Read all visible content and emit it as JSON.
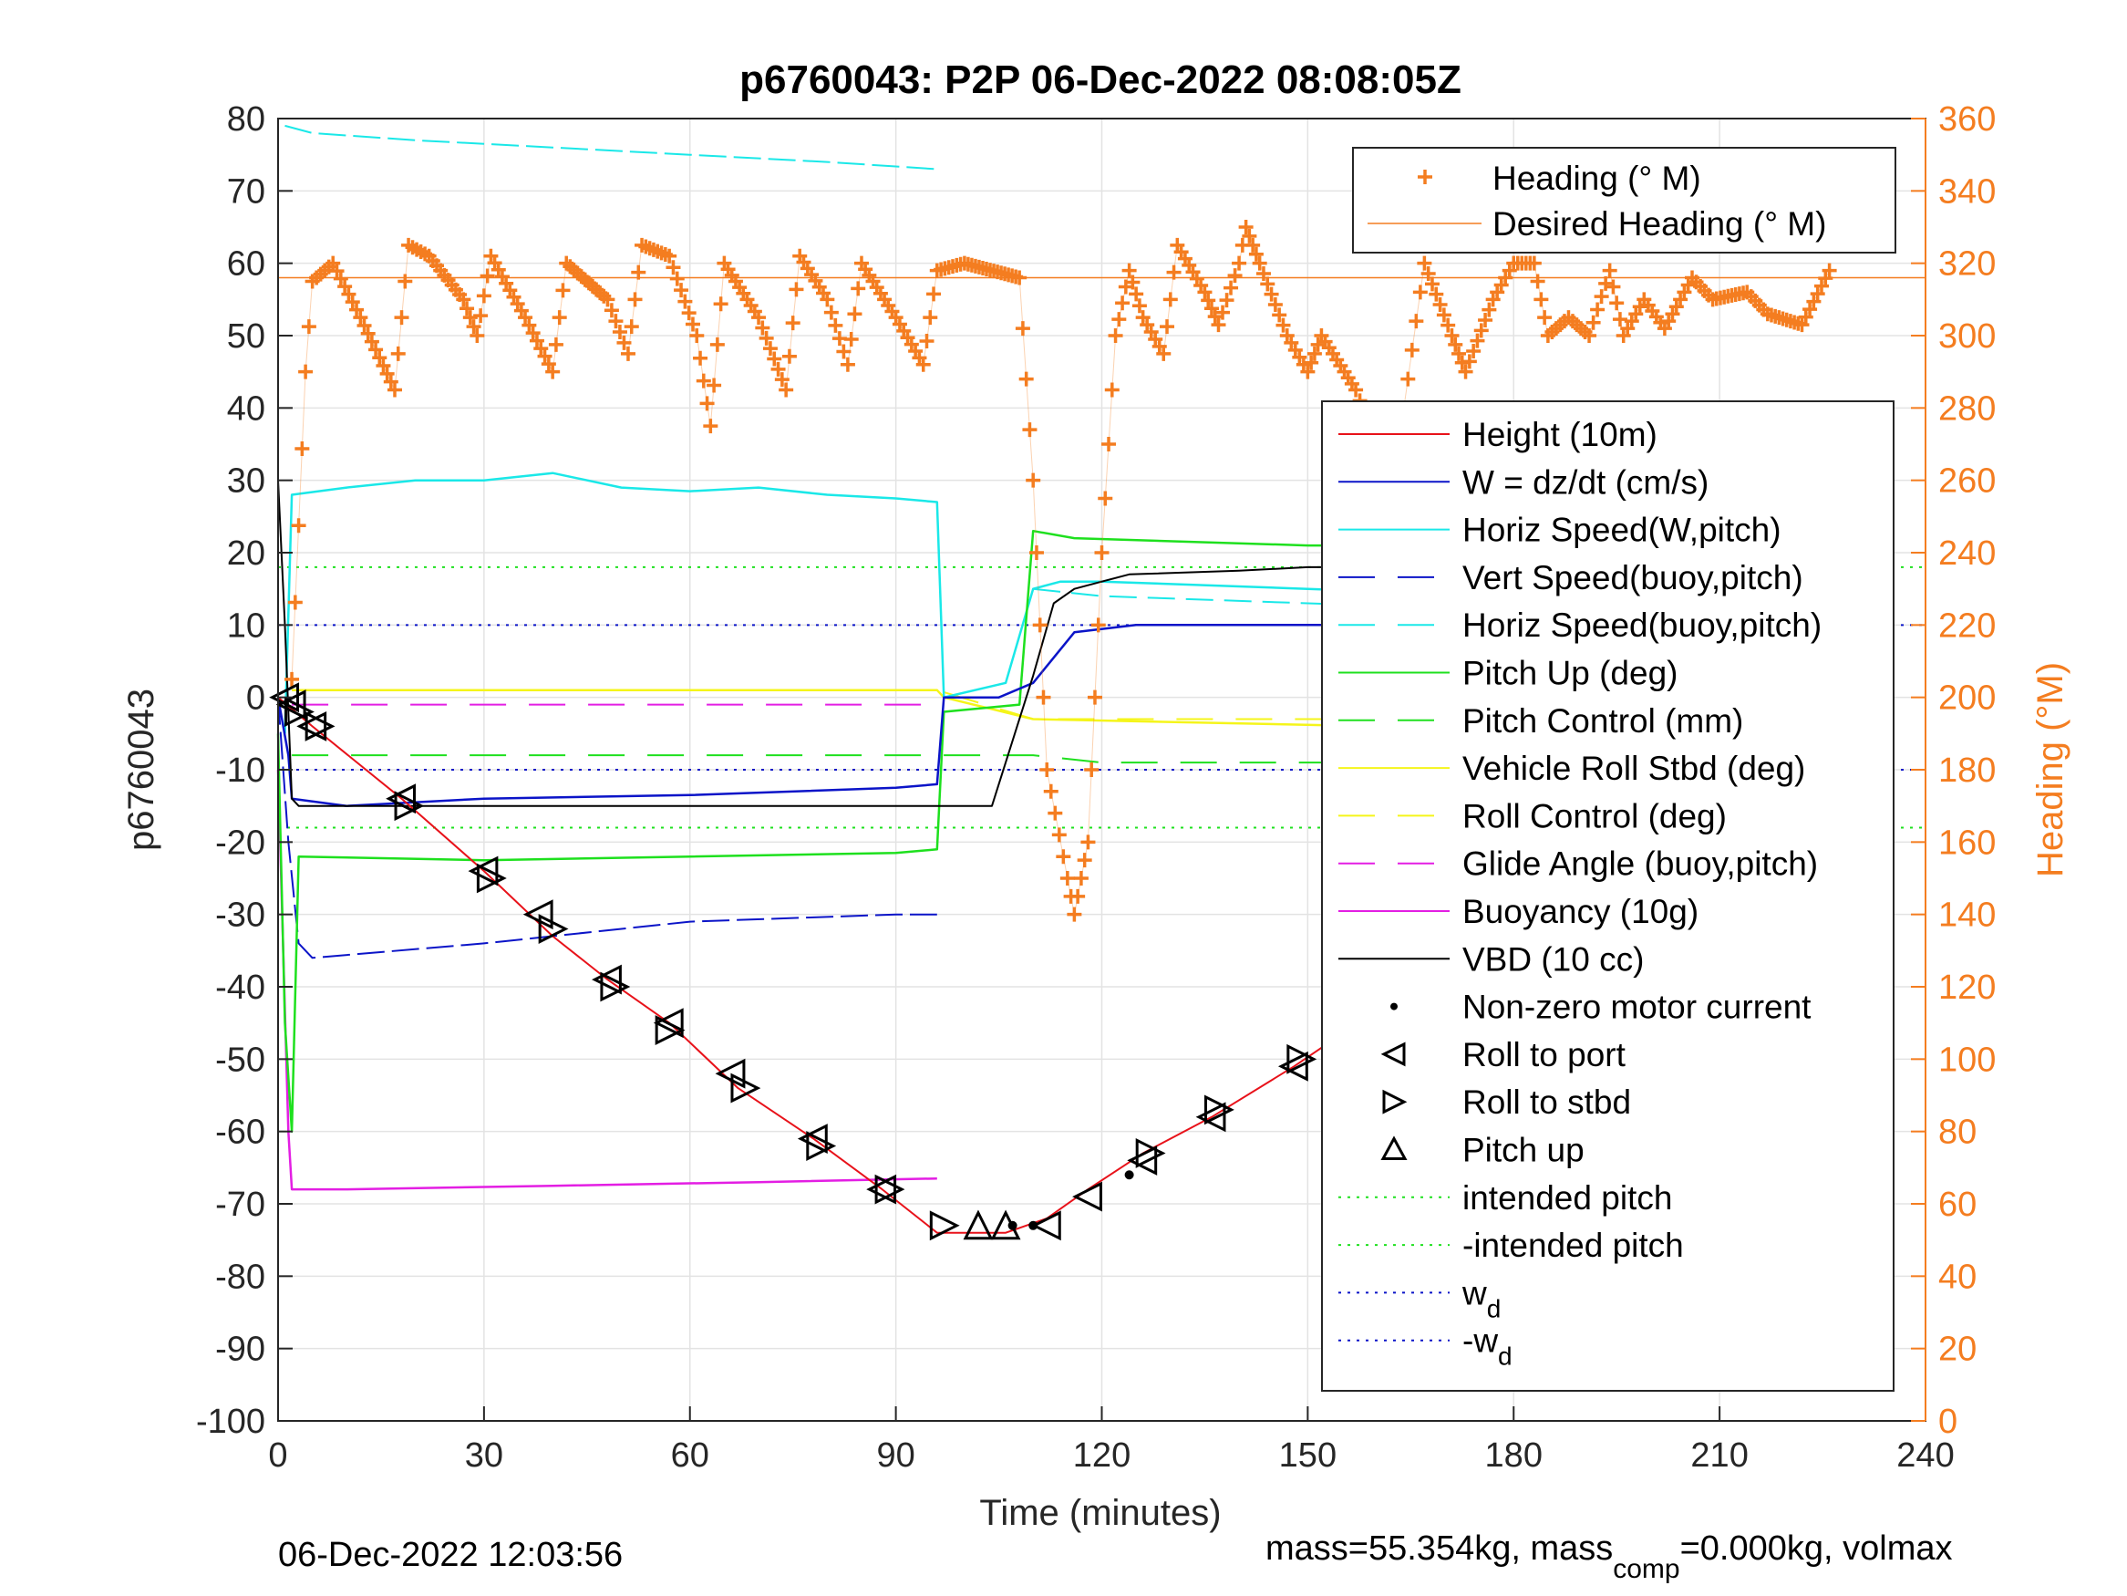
{
  "footer": {
    "timestamp": "06-Dec-2022 12:03:56",
    "mass_prefix": "mass=55.354kg, mass",
    "mass_sub": "comp",
    "mass_suffix": "=0.000kg, volmax"
  },
  "chart_data": {
    "type": "line",
    "title": "p6760043: P2P 06-Dec-2022 08:08:05Z",
    "xlabel": "Time (minutes)",
    "ylabel": "p6760043",
    "y2label": "Heading (°M)",
    "xlim": [
      0,
      240
    ],
    "ylim": [
      -100,
      80
    ],
    "y2lim": [
      0,
      360
    ],
    "xticks": [
      "0",
      "30",
      "60",
      "90",
      "120",
      "150",
      "180",
      "210",
      "240"
    ],
    "yticks": [
      "80",
      "70",
      "60",
      "50",
      "40",
      "30",
      "20",
      "10",
      "0",
      "-10",
      "-20",
      "-30",
      "-40",
      "-50",
      "-60",
      "-70",
      "-80",
      "-90",
      "-100"
    ],
    "y2ticks": [
      "360",
      "340",
      "320",
      "300",
      "280",
      "260",
      "240",
      "220",
      "200",
      "180",
      "160",
      "140",
      "120",
      "100",
      "80",
      "60",
      "40",
      "20",
      "0"
    ],
    "grid": true,
    "colors": {
      "heading": "#f47d20",
      "height": "#e8121a",
      "w": "#0b14c8",
      "cyan": "#1ae8e8",
      "green": "#1ee01e",
      "yellow": "#f5f51a",
      "magenta": "#e31ee3",
      "black": "#000000"
    },
    "legend_heading": {
      "placement": "top-right",
      "entries": [
        "Heading (° M)",
        "Desired Heading (° M)"
      ]
    },
    "legend_main": {
      "placement": "right",
      "entries": [
        {
          "label": "Height (10m)",
          "style": "solid",
          "color": "#e8121a"
        },
        {
          "label": "W = dz/dt (cm/s)",
          "style": "solid",
          "color": "#0b14c8"
        },
        {
          "label": "Horiz Speed(W,pitch)",
          "style": "solid",
          "color": "#1ae8e8"
        },
        {
          "label": "Vert Speed(buoy,pitch)",
          "style": "dashed",
          "color": "#0b14c8"
        },
        {
          "label": "Horiz Speed(buoy,pitch)",
          "style": "dashed",
          "color": "#1ae8e8"
        },
        {
          "label": "Pitch Up (deg)",
          "style": "solid",
          "color": "#1ee01e"
        },
        {
          "label": "Pitch Control (mm)",
          "style": "dashed",
          "color": "#1ee01e"
        },
        {
          "label": "Vehicle Roll Stbd (deg)",
          "style": "solid",
          "color": "#f5f51a"
        },
        {
          "label": "Roll Control (deg)",
          "style": "dashed",
          "color": "#f5f51a"
        },
        {
          "label": "Glide Angle (buoy,pitch)",
          "style": "dashed",
          "color": "#e31ee3"
        },
        {
          "label": "Buoyancy (10g)",
          "style": "solid",
          "color": "#e31ee3"
        },
        {
          "label": "VBD (10 cc)",
          "style": "solid",
          "color": "#000000"
        },
        {
          "label": "Non-zero motor current",
          "style": "dot-marker",
          "color": "#000000"
        },
        {
          "label": "Roll to port",
          "style": "marker-left",
          "color": "#000000"
        },
        {
          "label": "Roll to stbd",
          "style": "marker-right",
          "color": "#000000"
        },
        {
          "label": "Pitch up",
          "style": "marker-up",
          "color": "#000000"
        },
        {
          "label": "intended pitch",
          "style": "dotted",
          "color": "#1ee01e"
        },
        {
          "label": "-intended pitch",
          "style": "dotted",
          "color": "#1ee01e"
        },
        {
          "label": "w",
          "sub": "d",
          "style": "dotted",
          "color": "#0b14c8"
        },
        {
          "label": "-w",
          "sub": "d",
          "style": "dotted",
          "color": "#0b14c8"
        }
      ]
    },
    "reference_lines": {
      "intended_pitch": 18,
      "neg_intended_pitch": -18,
      "w_d": 10,
      "neg_w_d": -10,
      "desired_heading": 316
    },
    "series": {
      "height": [
        [
          0,
          0
        ],
        [
          5,
          -4
        ],
        [
          18,
          -14
        ],
        [
          30,
          -24
        ],
        [
          40,
          -33
        ],
        [
          48,
          -39
        ],
        [
          57,
          -45
        ],
        [
          67,
          -54
        ],
        [
          78,
          -61
        ],
        [
          88,
          -68
        ],
        [
          96,
          -74
        ],
        [
          101,
          -74
        ],
        [
          106,
          -74
        ],
        [
          112,
          -72
        ],
        [
          118,
          -68
        ],
        [
          126,
          -63
        ],
        [
          136,
          -58
        ],
        [
          148,
          -51
        ],
        [
          162,
          -42
        ],
        [
          172,
          -37
        ],
        [
          182,
          -30
        ],
        [
          193,
          -22
        ],
        [
          203,
          -15
        ],
        [
          212,
          -10
        ],
        [
          220,
          -5
        ],
        [
          226,
          0
        ]
      ],
      "w_dzdt": [
        [
          0,
          0
        ],
        [
          1.5,
          -8
        ],
        [
          2,
          -14
        ],
        [
          10,
          -15
        ],
        [
          30,
          -14
        ],
        [
          60,
          -13.5
        ],
        [
          90,
          -12.5
        ],
        [
          96,
          -12
        ],
        [
          97,
          0
        ],
        [
          105,
          0
        ],
        [
          110,
          2
        ],
        [
          116,
          9
        ],
        [
          125,
          10
        ],
        [
          150,
          10
        ],
        [
          180,
          10
        ],
        [
          210,
          10
        ],
        [
          226,
          10
        ]
      ],
      "vert_speed_buoy": [
        [
          0,
          0
        ],
        [
          1.5,
          -20
        ],
        [
          3,
          -34
        ],
        [
          5,
          -36
        ],
        [
          30,
          -34
        ],
        [
          60,
          -31
        ],
        [
          90,
          -30
        ],
        [
          96,
          -30
        ]
      ],
      "horiz_speed_w_top": [
        [
          1,
          79
        ],
        [
          5,
          78
        ],
        [
          20,
          77
        ],
        [
          40,
          76
        ],
        [
          60,
          75
        ],
        [
          80,
          74
        ],
        [
          96,
          73
        ]
      ],
      "horiz_speed_w": [
        [
          1,
          -5
        ],
        [
          2,
          28
        ],
        [
          10,
          29
        ],
        [
          20,
          30
        ],
        [
          30,
          30
        ],
        [
          40,
          31
        ],
        [
          50,
          29
        ],
        [
          60,
          28.5
        ],
        [
          70,
          29
        ],
        [
          80,
          28
        ],
        [
          90,
          27.5
        ],
        [
          96,
          27
        ],
        [
          97,
          0
        ],
        [
          106,
          2
        ],
        [
          110,
          15
        ],
        [
          114,
          16
        ],
        [
          120,
          16
        ],
        [
          150,
          15
        ],
        [
          180,
          14
        ],
        [
          200,
          13
        ],
        [
          226,
          12
        ]
      ],
      "horiz_speed_buoy": [
        [
          110,
          15
        ],
        [
          120,
          14
        ],
        [
          150,
          13
        ],
        [
          180,
          12
        ],
        [
          210,
          11
        ],
        [
          226,
          10
        ]
      ],
      "pitch_up": [
        [
          0,
          -5
        ],
        [
          1,
          -45
        ],
        [
          2,
          -60
        ],
        [
          3,
          -22
        ],
        [
          30,
          -22.5
        ],
        [
          60,
          -22
        ],
        [
          90,
          -21.5
        ],
        [
          96,
          -21
        ],
        [
          97,
          -2
        ],
        [
          108,
          -1
        ],
        [
          110,
          23
        ],
        [
          116,
          22
        ],
        [
          150,
          21
        ],
        [
          180,
          21
        ],
        [
          210,
          21
        ],
        [
          226,
          22
        ]
      ],
      "pitch_control": [
        [
          2,
          -8
        ],
        [
          90,
          -8
        ],
        [
          96,
          -8
        ],
        [
          100,
          -8
        ],
        [
          110,
          -8
        ],
        [
          120,
          -9
        ],
        [
          150,
          -9
        ],
        [
          180,
          -9
        ],
        [
          226,
          -9
        ]
      ],
      "vehicle_roll": [
        [
          2,
          1
        ],
        [
          96,
          1
        ],
        [
          97,
          0
        ],
        [
          110,
          -3
        ],
        [
          160,
          -4
        ],
        [
          226,
          -4
        ]
      ],
      "roll_control": [
        [
          2,
          1
        ],
        [
          96,
          1
        ],
        [
          110,
          -3
        ],
        [
          226,
          -3
        ]
      ],
      "glide_angle": [
        [
          2,
          -1
        ],
        [
          96,
          -1
        ]
      ],
      "buoyancy": [
        [
          0,
          -10
        ],
        [
          1.5,
          -60
        ],
        [
          2,
          -68
        ],
        [
          10,
          -68
        ],
        [
          40,
          -67.5
        ],
        [
          70,
          -67
        ],
        [
          96,
          -66.5
        ]
      ],
      "vbd": [
        [
          0,
          30
        ],
        [
          1,
          10
        ],
        [
          2,
          -14
        ],
        [
          3,
          -15
        ],
        [
          96,
          -15
        ],
        [
          104,
          -15
        ],
        [
          110,
          3
        ],
        [
          113,
          13
        ],
        [
          116,
          15
        ],
        [
          120,
          16
        ],
        [
          124,
          17
        ],
        [
          140,
          17.5
        ],
        [
          150,
          18
        ],
        [
          167,
          18
        ],
        [
          170,
          19
        ],
        [
          190,
          19.5
        ],
        [
          226,
          20
        ]
      ],
      "heading": [
        [
          2,
          205
        ],
        [
          4,
          290
        ],
        [
          5,
          315
        ],
        [
          8,
          320
        ],
        [
          12,
          305
        ],
        [
          17,
          285
        ],
        [
          19,
          325
        ],
        [
          22,
          322
        ],
        [
          27,
          310
        ],
        [
          29,
          300
        ],
        [
          31,
          322
        ],
        [
          36,
          305
        ],
        [
          40,
          290
        ],
        [
          42,
          320
        ],
        [
          48,
          310
        ],
        [
          51,
          295
        ],
        [
          53,
          325
        ],
        [
          57,
          322
        ],
        [
          61,
          300
        ],
        [
          63,
          275
        ],
        [
          65,
          320
        ],
        [
          70,
          305
        ],
        [
          74,
          285
        ],
        [
          76,
          322
        ],
        [
          80,
          310
        ],
        [
          83,
          292
        ],
        [
          85,
          320
        ],
        [
          90,
          305
        ],
        [
          94,
          292
        ],
        [
          96,
          318
        ],
        [
          100,
          320
        ],
        [
          108,
          316
        ],
        [
          110,
          260
        ],
        [
          112,
          180
        ],
        [
          115,
          150
        ],
        [
          116,
          140
        ],
        [
          118,
          160
        ],
        [
          120,
          240
        ],
        [
          122,
          300
        ],
        [
          124,
          318
        ],
        [
          126,
          305
        ],
        [
          129,
          295
        ],
        [
          131,
          325
        ],
        [
          135,
          312
        ],
        [
          137,
          303
        ],
        [
          140,
          320
        ],
        [
          141,
          330
        ],
        [
          143,
          320
        ],
        [
          147,
          300
        ],
        [
          150,
          290
        ],
        [
          152,
          300
        ],
        [
          157,
          285
        ],
        [
          160,
          270
        ],
        [
          162,
          265
        ],
        [
          164,
          280
        ],
        [
          167,
          320
        ],
        [
          171,
          300
        ],
        [
          173,
          290
        ],
        [
          177,
          310
        ],
        [
          180,
          320
        ],
        [
          183,
          320
        ],
        [
          185,
          300
        ],
        [
          188,
          305
        ],
        [
          191,
          300
        ],
        [
          194,
          318
        ],
        [
          196,
          300
        ],
        [
          199,
          310
        ],
        [
          202,
          302
        ],
        [
          206,
          316
        ],
        [
          209,
          310
        ],
        [
          214,
          312
        ],
        [
          217,
          306
        ],
        [
          222,
          303
        ],
        [
          226,
          318
        ]
      ]
    },
    "events": {
      "roll_to_port": [
        [
          1,
          0
        ],
        [
          2,
          -1
        ],
        [
          5,
          -4
        ],
        [
          18,
          -14
        ],
        [
          30,
          -24
        ],
        [
          38,
          -30
        ],
        [
          48,
          -39
        ],
        [
          57,
          -45
        ],
        [
          66,
          -52
        ],
        [
          78,
          -61
        ],
        [
          88,
          -68
        ],
        [
          112,
          -73
        ],
        [
          118,
          -69
        ],
        [
          126,
          -64
        ],
        [
          136,
          -58
        ],
        [
          148,
          -51
        ],
        [
          162,
          -43
        ],
        [
          172,
          -38
        ],
        [
          182,
          -30
        ],
        [
          193,
          -22
        ],
        [
          203,
          -16
        ],
        [
          210,
          -10
        ],
        [
          216,
          -7
        ],
        [
          220,
          -4
        ]
      ],
      "roll_to_stbd": [
        [
          3,
          -2
        ],
        [
          6,
          -4
        ],
        [
          19,
          -15
        ],
        [
          31,
          -25
        ],
        [
          40,
          -32
        ],
        [
          49,
          -40
        ],
        [
          57,
          -46
        ],
        [
          68,
          -54
        ],
        [
          79,
          -62
        ],
        [
          89,
          -68
        ],
        [
          97,
          -73
        ],
        [
          127,
          -63
        ],
        [
          137,
          -57
        ],
        [
          149,
          -50
        ],
        [
          163,
          -42
        ],
        [
          174,
          -35
        ],
        [
          185,
          -27
        ],
        [
          195,
          -21
        ],
        [
          203,
          -15
        ],
        [
          211,
          -9
        ],
        [
          218,
          -6
        ],
        [
          222,
          -3
        ]
      ],
      "pitch_up": [
        [
          102,
          -73
        ],
        [
          106,
          -73
        ]
      ],
      "motor_current": [
        [
          107,
          -73
        ],
        [
          110,
          -73
        ],
        [
          124,
          -66
        ],
        [
          170,
          -39
        ],
        [
          227,
          0
        ]
      ]
    }
  }
}
